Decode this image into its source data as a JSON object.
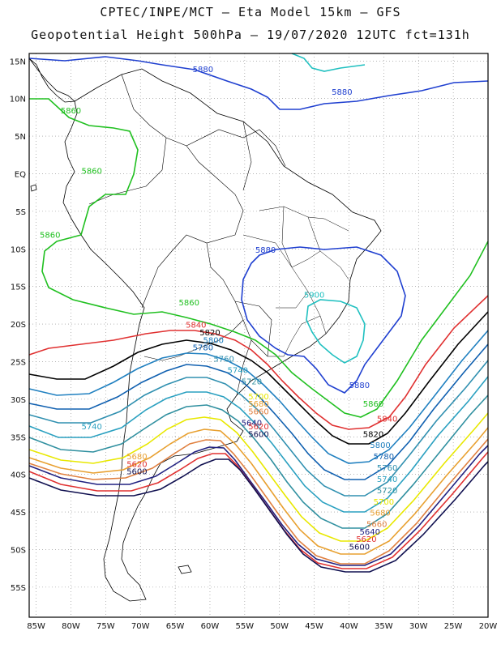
{
  "header": {
    "title_line1": "CPTEC/INPE/MCT –  Eta Model 15km – GFS",
    "title_line2": "Geopotential Height 500hPa – 19/07/2020 12UTC fct=131h"
  },
  "map": {
    "lon_ticks": [
      "85W",
      "80W",
      "75W",
      "70W",
      "65W",
      "60W",
      "55W",
      "50W",
      "45W",
      "40W",
      "35W",
      "30W",
      "25W",
      "20W"
    ],
    "lat_ticks": [
      "15N",
      "10N",
      "5N",
      "EQ",
      "5S",
      "10S",
      "15S",
      "20S",
      "25S",
      "30S",
      "35S",
      "40S",
      "45S",
      "50S",
      "55S"
    ],
    "grid": "dotted",
    "extent": {
      "lon": [
        -86,
        -20
      ],
      "lat": [
        -59,
        16
      ]
    },
    "colors": {
      "5900": "#20c0c0",
      "5880": "#2040d0",
      "5860": "#20c020",
      "5840": "#e03030",
      "5820": "#000000",
      "5800": "#2080c0",
      "5780": "#1060b0",
      "5760": "#3090b0",
      "5740": "#2aa0c0",
      "5720": "#3090a0",
      "5700": "#e8e800",
      "5680": "#e8a030",
      "5660": "#e08040",
      "5640": "#202080",
      "5620": "#e03030",
      "5600": "#101050"
    },
    "contour_labels": [
      {
        "text": "5880",
        "lon": -61,
        "lat": 13.5
      },
      {
        "text": "5880",
        "lon": -41,
        "lat": 10.5
      },
      {
        "text": "5860",
        "lon": -80,
        "lat": 8
      },
      {
        "text": "5860",
        "lon": -77,
        "lat": 0
      },
      {
        "text": "5860",
        "lon": -83,
        "lat": -8.5
      },
      {
        "text": "5880",
        "lon": -52,
        "lat": -10.5
      },
      {
        "text": "5900",
        "lon": -45,
        "lat": -16.5
      },
      {
        "text": "5860",
        "lon": -63,
        "lat": -17.5
      },
      {
        "text": "5840",
        "lon": -62,
        "lat": -20.5
      },
      {
        "text": "5820",
        "lon": -60,
        "lat": -21.5
      },
      {
        "text": "5800",
        "lon": -59.5,
        "lat": -22.5
      },
      {
        "text": "5780",
        "lon": -61,
        "lat": -23.5
      },
      {
        "text": "5760",
        "lon": -58,
        "lat": -25
      },
      {
        "text": "5740",
        "lon": -56,
        "lat": -26.5
      },
      {
        "text": "5720",
        "lon": -54,
        "lat": -28
      },
      {
        "text": "5700",
        "lon": -53,
        "lat": -30
      },
      {
        "text": "5680",
        "lon": -53,
        "lat": -31
      },
      {
        "text": "5660",
        "lon": -53,
        "lat": -32
      },
      {
        "text": "5640",
        "lon": -54,
        "lat": -33.5
      },
      {
        "text": "5620",
        "lon": -53,
        "lat": -34
      },
      {
        "text": "5600",
        "lon": -53,
        "lat": -35
      },
      {
        "text": "5740",
        "lon": -77,
        "lat": -34
      },
      {
        "text": "5680",
        "lon": -70.5,
        "lat": -38
      },
      {
        "text": "5620",
        "lon": -70.5,
        "lat": -39
      },
      {
        "text": "5600",
        "lon": -70.5,
        "lat": -40
      },
      {
        "text": "5880",
        "lon": -38.5,
        "lat": -28.5
      },
      {
        "text": "5860",
        "lon": -36.5,
        "lat": -31
      },
      {
        "text": "5840",
        "lon": -34.5,
        "lat": -33
      },
      {
        "text": "5820",
        "lon": -36.5,
        "lat": -35
      },
      {
        "text": "5800",
        "lon": -35.5,
        "lat": -36.5
      },
      {
        "text": "5780",
        "lon": -35,
        "lat": -38
      },
      {
        "text": "5760",
        "lon": -34.5,
        "lat": -39.5
      },
      {
        "text": "5740",
        "lon": -34.5,
        "lat": -41
      },
      {
        "text": "5720",
        "lon": -34.5,
        "lat": -42.5
      },
      {
        "text": "5700",
        "lon": -35,
        "lat": -44
      },
      {
        "text": "5680",
        "lon": -35.5,
        "lat": -45.5
      },
      {
        "text": "5660",
        "lon": -36,
        "lat": -47
      },
      {
        "text": "5640",
        "lon": -37,
        "lat": -48
      },
      {
        "text": "5620",
        "lon": -37.5,
        "lat": -49
      },
      {
        "text": "5600",
        "lon": -38.5,
        "lat": -50
      }
    ]
  }
}
